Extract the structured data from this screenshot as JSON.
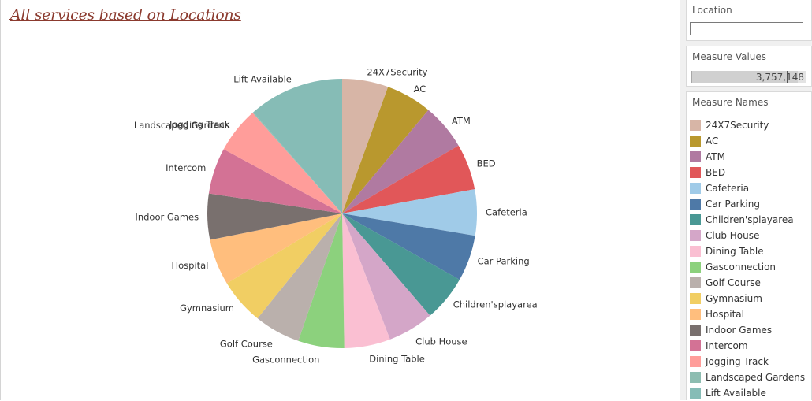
{
  "title": "All services based on Locations",
  "filters": {
    "location": {
      "title": "Location",
      "value": ""
    },
    "measure_values": {
      "title": "Measure Values",
      "value": "3,757,148",
      "fill_fraction": 0.93,
      "marker_fraction": 0.83
    }
  },
  "legend": {
    "title": "Measure Names"
  },
  "chart_data": {
    "type": "pie",
    "title": "All services based on Locations",
    "legend_placement": "right",
    "slices": [
      {
        "label": "24X7Security",
        "value": 5.5,
        "color": "#D7B5A6"
      },
      {
        "label": "AC",
        "value": 5.5,
        "color": "#B9982E"
      },
      {
        "label": "ATM",
        "value": 5.5,
        "color": "#B07AA1"
      },
      {
        "label": "BED",
        "value": 5.5,
        "color": "#E15759"
      },
      {
        "label": "Cafeteria",
        "value": 5.5,
        "color": "#A0CBE8"
      },
      {
        "label": "Car Parking",
        "value": 5.5,
        "color": "#4E79A7"
      },
      {
        "label": "Children'splayarea",
        "value": 5.5,
        "color": "#499894"
      },
      {
        "label": "Club House",
        "value": 5.5,
        "color": "#D4A6C8"
      },
      {
        "label": "Dining Table",
        "value": 5.5,
        "color": "#FABFD2"
      },
      {
        "label": "Gasconnection",
        "value": 5.5,
        "color": "#8CD17D"
      },
      {
        "label": "Golf Course",
        "value": 5.5,
        "color": "#BAB0AC"
      },
      {
        "label": "Gymnasium",
        "value": 5.5,
        "color": "#F1CE63"
      },
      {
        "label": "Hospital",
        "value": 5.5,
        "color": "#FFBE7D"
      },
      {
        "label": "Indoor Games",
        "value": 5.5,
        "color": "#79706E"
      },
      {
        "label": "Intercom",
        "value": 5.5,
        "color": "#D37295"
      },
      {
        "label": "Jogging Track",
        "value": 5.5,
        "color": "#FF9D9A"
      },
      {
        "label": "Landscaped Gardens",
        "value": 0.1,
        "color": "#8DBDB1"
      },
      {
        "label": "Lift Available",
        "value": 11.4,
        "color": "#86BCB6"
      }
    ]
  }
}
